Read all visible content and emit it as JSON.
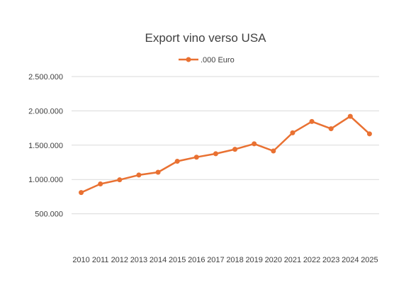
{
  "chart_data": {
    "type": "line",
    "title": "Export vino verso USA",
    "xlabel": "",
    "ylabel": "",
    "grid": true,
    "legend_position": "top",
    "ylim": [
      0,
      2500000
    ],
    "yticks": [
      500000,
      1000000,
      1500000,
      2000000,
      2500000
    ],
    "ytick_labels": [
      "500.000",
      "1.000.000",
      "1.500.000",
      "2.000.000",
      "2.500.000"
    ],
    "categories": [
      "2010",
      "2011",
      "2012",
      "2013",
      "2014",
      "2015",
      "2016",
      "2017",
      "2018",
      "2019",
      "2020",
      "2021",
      "2022",
      "2023",
      "2024",
      "2025"
    ],
    "series": [
      {
        "name": ".000 Euro",
        "color": "#e97132",
        "values": [
          810000,
          935000,
          995000,
          1065000,
          1105000,
          1265000,
          1325000,
          1375000,
          1440000,
          1520000,
          1415000,
          1680000,
          1845000,
          1740000,
          1920000,
          1665000
        ]
      }
    ]
  }
}
